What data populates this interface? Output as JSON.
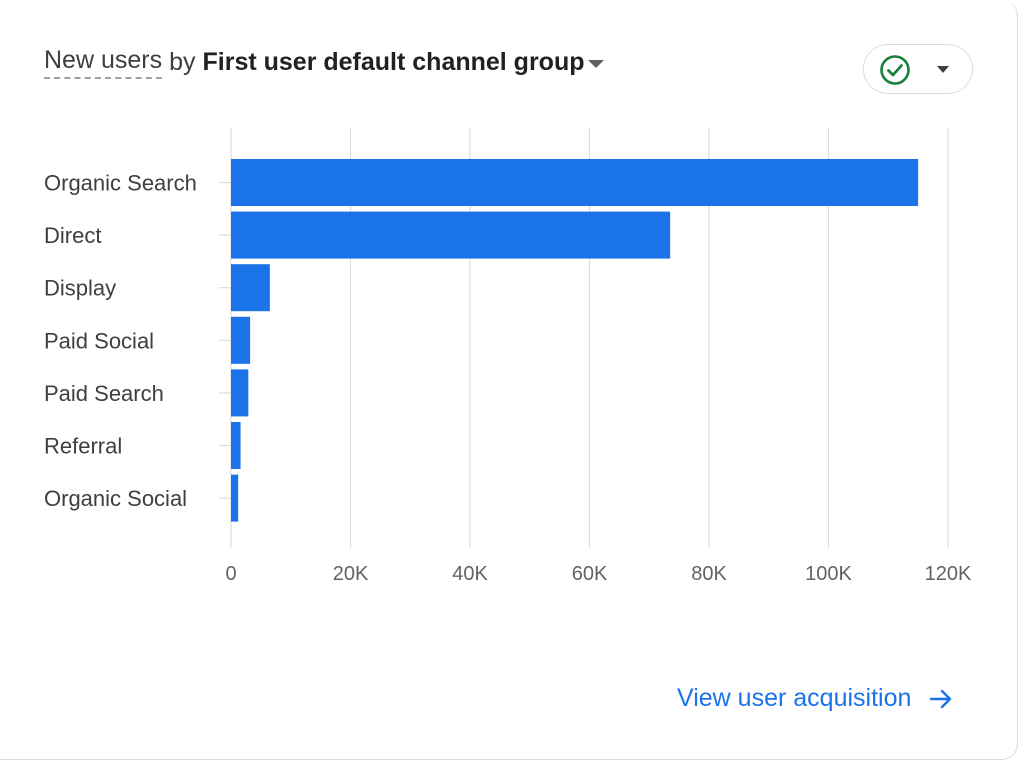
{
  "card": {
    "title_metric": "New users",
    "title_by": "by",
    "title_dimension": "First user default channel group",
    "status_icon": "check-circle-icon",
    "menu_icon": "chevron-down-icon",
    "link_label": "View user acquisition",
    "link_icon": "arrow-right-icon"
  },
  "colors": {
    "bar": "#1a73e8",
    "grid": "#dadce0",
    "check": "#188038",
    "link": "#1a73e8"
  },
  "chart_data": {
    "type": "bar",
    "orientation": "horizontal",
    "categories": [
      "Organic Search",
      "Direct",
      "Display",
      "Paid Social",
      "Paid Search",
      "Referral",
      "Organic Social"
    ],
    "values": [
      115000,
      73500,
      6500,
      3200,
      2900,
      1600,
      1200
    ],
    "x_ticks": [
      0,
      20000,
      40000,
      60000,
      80000,
      100000,
      120000
    ],
    "x_tick_labels": [
      "0",
      "20K",
      "40K",
      "60K",
      "80K",
      "100K",
      "120K"
    ],
    "xlim": [
      0,
      120000
    ],
    "grid": true
  }
}
